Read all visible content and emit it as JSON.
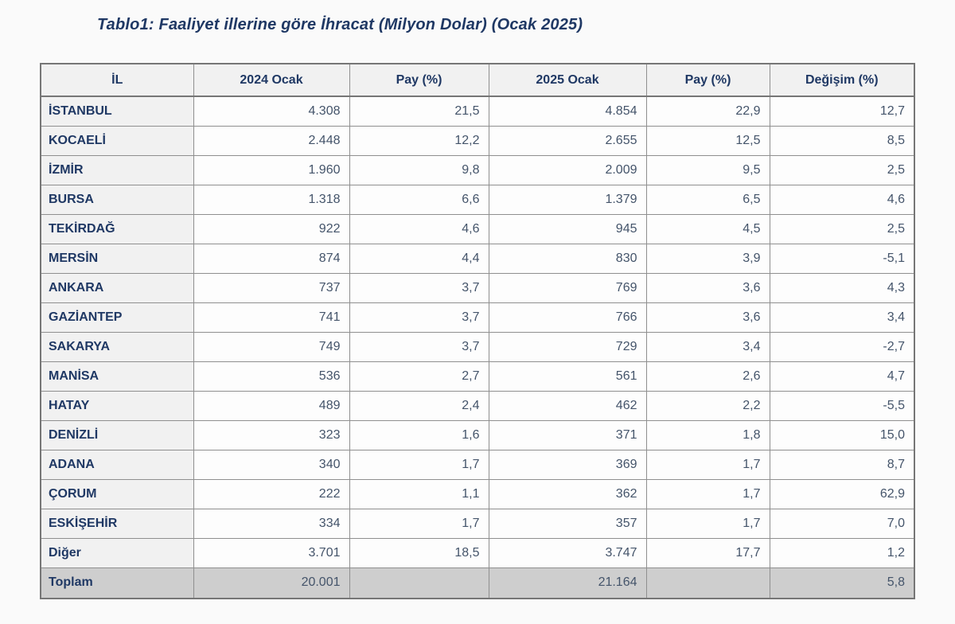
{
  "chart_data": {
    "type": "table",
    "title": "Tablo1: Faaliyet illerine göre İhracat (Milyon Dolar) (Ocak 2025)",
    "columns": [
      "İL",
      "2024 Ocak",
      "Pay  (%)",
      "2025 Ocak",
      "Pay  (%)",
      "Değişim (%)"
    ],
    "rows": [
      [
        "İSTANBUL",
        "4.308",
        "21,5",
        "4.854",
        "22,9",
        "12,7"
      ],
      [
        "KOCAELİ",
        "2.448",
        "12,2",
        "2.655",
        "12,5",
        "8,5"
      ],
      [
        "İZMİR",
        "1.960",
        "9,8",
        "2.009",
        "9,5",
        "2,5"
      ],
      [
        "BURSA",
        "1.318",
        "6,6",
        "1.379",
        "6,5",
        "4,6"
      ],
      [
        "TEKİRDAĞ",
        "922",
        "4,6",
        "945",
        "4,5",
        "2,5"
      ],
      [
        "MERSİN",
        "874",
        "4,4",
        "830",
        "3,9",
        "-5,1"
      ],
      [
        "ANKARA",
        "737",
        "3,7",
        "769",
        "3,6",
        "4,3"
      ],
      [
        "GAZİANTEP",
        "741",
        "3,7",
        "766",
        "3,6",
        "3,4"
      ],
      [
        "SAKARYA",
        "749",
        "3,7",
        "729",
        "3,4",
        "-2,7"
      ],
      [
        "MANİSA",
        "536",
        "2,7",
        "561",
        "2,6",
        "4,7"
      ],
      [
        "HATAY",
        "489",
        "2,4",
        "462",
        "2,2",
        "-5,5"
      ],
      [
        "DENİZLİ",
        "323",
        "1,6",
        "371",
        "1,8",
        "15,0"
      ],
      [
        "ADANA",
        "340",
        "1,7",
        "369",
        "1,7",
        "8,7"
      ],
      [
        "ÇORUM",
        "222",
        "1,1",
        "362",
        "1,7",
        "62,9"
      ],
      [
        "ESKİŞEHİR",
        "334",
        "1,7",
        "357",
        "1,7",
        "7,0"
      ],
      [
        "Diğer",
        "3.701",
        "18,5",
        "3.747",
        "17,7",
        "1,2"
      ]
    ],
    "total_row": [
      "Toplam",
      "20.001",
      "",
      "21.164",
      "",
      "5,8"
    ],
    "layout": {
      "legend": "none",
      "grid": "full-borders",
      "value_alignment": "right",
      "label_alignment": "left"
    }
  },
  "colors": {
    "title_text": "#1f3864",
    "header_text": "#1f3864",
    "row_label_text": "#1f3864",
    "number_text": "#44546a",
    "header_bg": "#f1f1f1",
    "label_column_bg": "#f1f1f1",
    "value_cell_bg": "#fdfdfd",
    "total_row_bg": "#cecece",
    "border": "#8f8f8f",
    "page_bg": "#fafafa"
  }
}
